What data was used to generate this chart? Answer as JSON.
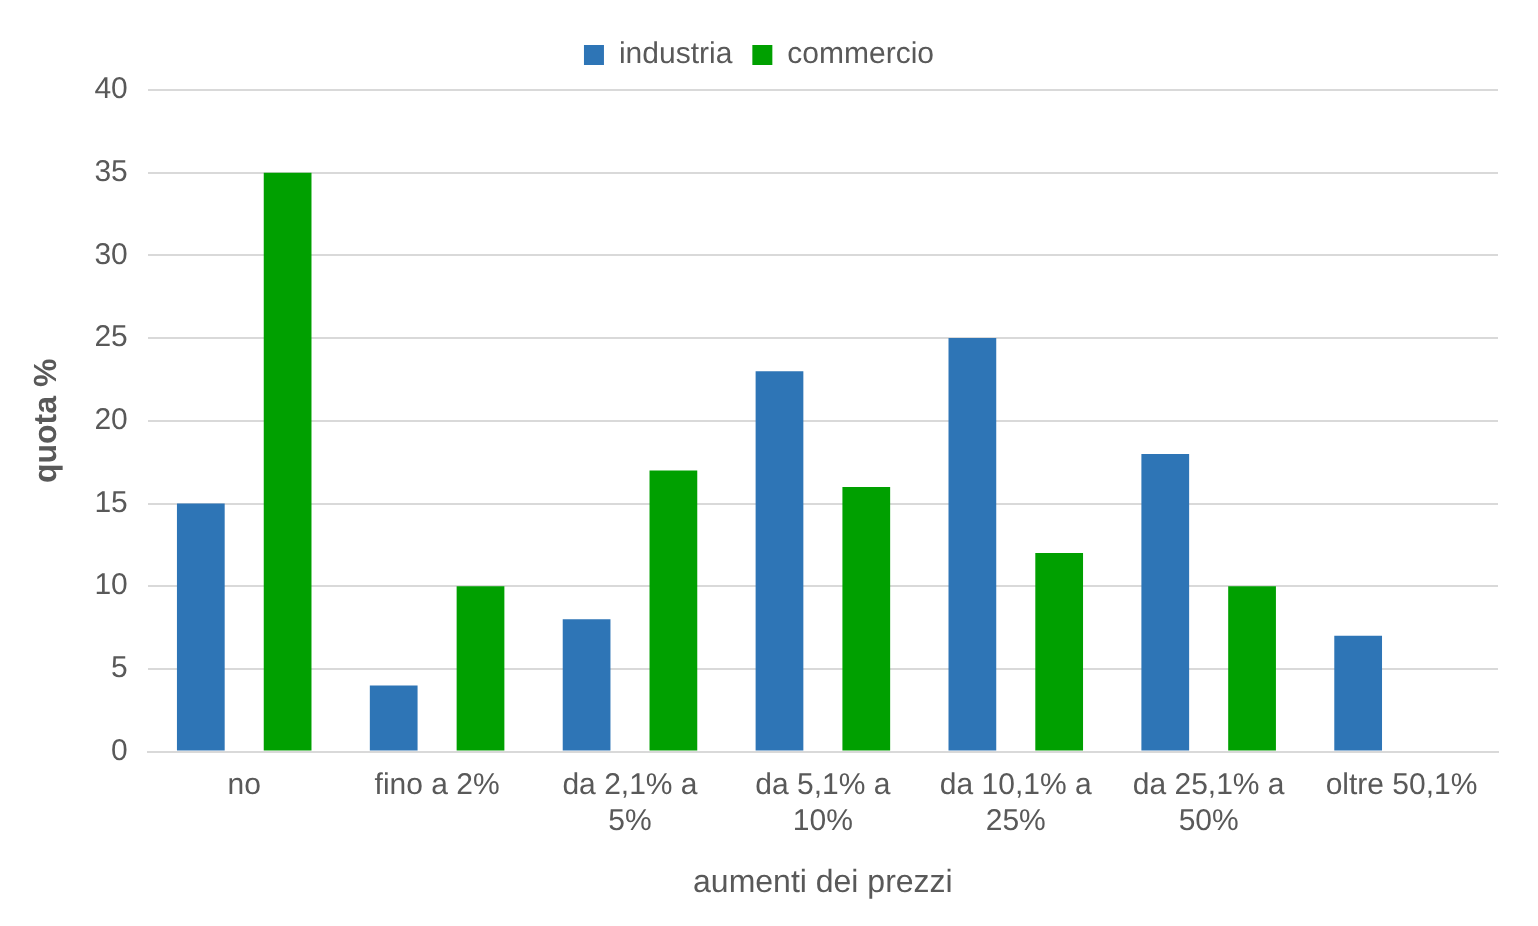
{
  "chart_data": {
    "type": "bar",
    "xlabel": "aumenti dei prezzi",
    "ylabel": "quota %",
    "categories": [
      "no",
      "fino a 2%",
      "da 2,1% a 5%",
      "da 5,1% a 10%",
      "da 10,1% a 25%",
      "da 25,1% a 50%",
      "oltre 50,1%"
    ],
    "series": [
      {
        "name": "industria",
        "color": "#2e75b6",
        "values": [
          15,
          4,
          8,
          23,
          25,
          18,
          7
        ]
      },
      {
        "name": "commercio",
        "color": "#00a000",
        "values": [
          35,
          10,
          17,
          16,
          12,
          10,
          0
        ]
      }
    ],
    "ylim": [
      0,
      40
    ],
    "yticks": [
      0,
      5,
      10,
      15,
      20,
      25,
      30,
      35,
      40
    ],
    "grid": "y",
    "legend": "top"
  }
}
